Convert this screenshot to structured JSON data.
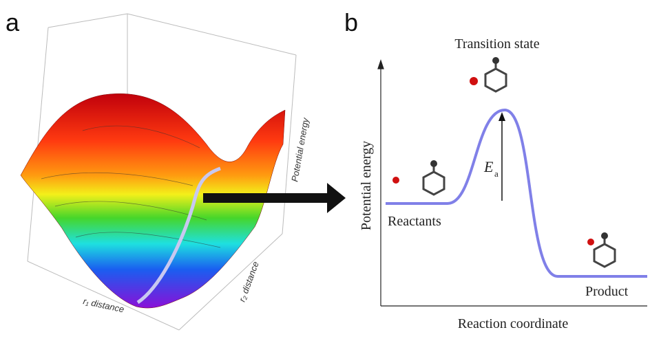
{
  "panel_a": {
    "label": "a",
    "z_axis_label": "Potential energy",
    "x_axis_label": "r₁ distance",
    "y_axis_label": "r₂ distance"
  },
  "panel_b": {
    "label": "b",
    "title": "Transition state",
    "y_axis_label": "Potential energy",
    "x_axis_label": "Reaction coordinate",
    "reactants": "Reactants",
    "product": "Product",
    "barrier_symbol": "E",
    "barrier_subscript": "a"
  }
}
